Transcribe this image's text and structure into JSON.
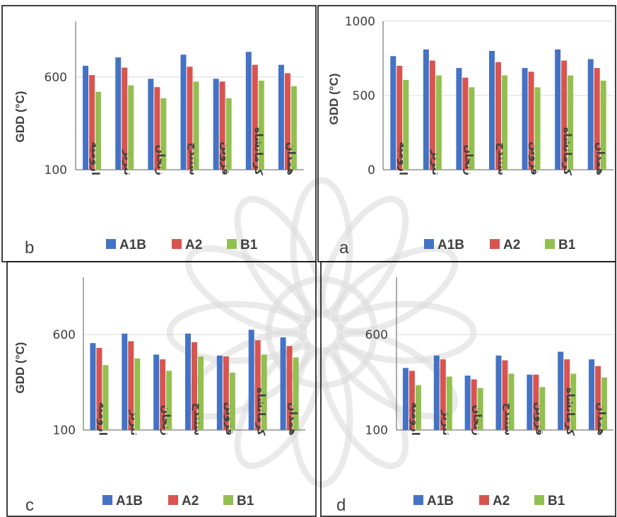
{
  "colors": {
    "A1B": "#4472C4",
    "A2": "#D9544F",
    "B1": "#92C050",
    "gridline": "#d9d9d9",
    "axis": "#595959",
    "text": "#404040"
  },
  "chart_data": [
    {
      "panel_label": "a",
      "type": "bar",
      "categories": [
        "ارومیه",
        "تبریز",
        "زنجان",
        "سنندج",
        "قزوین",
        "کرمانشاه",
        "همدان"
      ],
      "series": [
        {
          "name": "A1B",
          "values": [
            765,
            810,
            685,
            800,
            685,
            810,
            745
          ]
        },
        {
          "name": "A2",
          "values": [
            700,
            735,
            620,
            725,
            660,
            735,
            685
          ]
        },
        {
          "name": "B1",
          "values": [
            605,
            635,
            555,
            635,
            555,
            635,
            600
          ]
        }
      ],
      "ylabel": "GDD (°C)",
      "ylim": [
        0,
        1000
      ],
      "yticks": [
        0,
        500,
        1000
      ],
      "gridlines": [
        500,
        1000
      ],
      "legend_position": "bottom"
    },
    {
      "panel_label": "b",
      "type": "bar",
      "categories": [
        "ارومیه",
        "تبریز",
        "زنجان",
        "سنندج",
        "قزوین",
        "کرمانشاه",
        "همدان"
      ],
      "series": [
        {
          "name": "A1B",
          "values": [
            660,
            705,
            590,
            720,
            590,
            735,
            665
          ]
        },
        {
          "name": "A2",
          "values": [
            610,
            650,
            545,
            655,
            575,
            665,
            620
          ]
        },
        {
          "name": "B1",
          "values": [
            520,
            555,
            485,
            575,
            485,
            580,
            550
          ]
        }
      ],
      "ylabel": "GDD (°C)",
      "ylim": [
        100,
        900
      ],
      "yticks": [
        100,
        600
      ],
      "gridlines": [
        600
      ],
      "legend_position": "bottom"
    },
    {
      "panel_label": "c",
      "type": "bar",
      "categories": [
        "ارومیه",
        "تبریز",
        "زنجان",
        "سنندج",
        "قزوین",
        "کرمانشاه",
        "همدان"
      ],
      "series": [
        {
          "name": "A1B",
          "values": [
            555,
            605,
            495,
            605,
            490,
            625,
            585
          ]
        },
        {
          "name": "A2",
          "values": [
            530,
            565,
            470,
            560,
            485,
            570,
            540
          ]
        },
        {
          "name": "B1",
          "values": [
            440,
            475,
            410,
            485,
            400,
            495,
            480
          ]
        }
      ],
      "ylabel": "GDD (°C)",
      "ylim": [
        100,
        900
      ],
      "yticks": [
        100,
        600
      ],
      "gridlines": [
        600
      ],
      "legend_position": "bottom"
    },
    {
      "panel_label": "d",
      "type": "bar",
      "categories": [
        "ارومیه",
        "تبریز",
        "زنجان",
        "سنندج",
        "قزوین",
        "کرمانشاه",
        "همدان"
      ],
      "series": [
        {
          "name": "A1B",
          "values": [
            425,
            490,
            385,
            490,
            390,
            510,
            470
          ]
        },
        {
          "name": "A2",
          "values": [
            410,
            470,
            365,
            465,
            390,
            470,
            435
          ]
        },
        {
          "name": "B1",
          "values": [
            335,
            380,
            320,
            395,
            325,
            395,
            375
          ]
        }
      ],
      "ylabel": "",
      "ylim": [
        100,
        900
      ],
      "yticks": [
        100,
        600
      ],
      "gridlines": [
        600
      ],
      "legend_position": "bottom"
    }
  ]
}
